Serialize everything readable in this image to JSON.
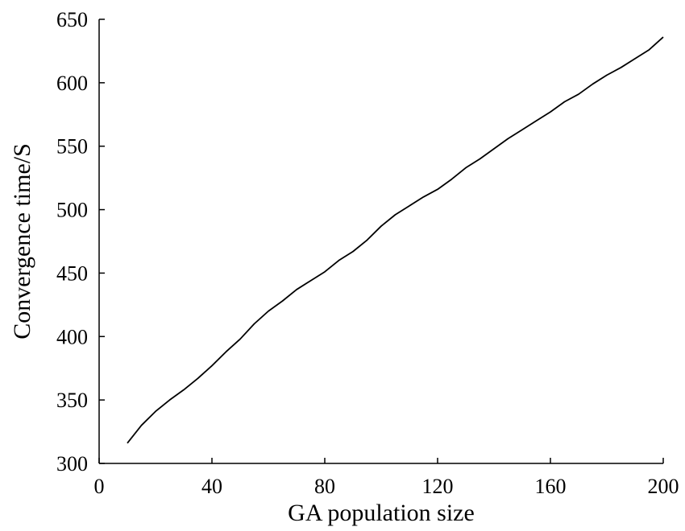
{
  "chart_data": {
    "type": "line",
    "title": "",
    "xlabel": "GA population size",
    "ylabel": "Convergence time/S",
    "xlim": [
      0,
      200
    ],
    "ylim": [
      300,
      650
    ],
    "x_ticks": [
      0,
      40,
      80,
      120,
      160,
      200
    ],
    "y_ticks": [
      300,
      350,
      400,
      450,
      500,
      550,
      600,
      650
    ],
    "grid": false,
    "legend": "none",
    "line_color": "#000000",
    "series": [
      {
        "x": [
          10,
          15,
          20,
          25,
          30,
          35,
          40,
          45,
          50,
          55,
          60,
          65,
          70,
          75,
          80,
          85,
          90,
          95,
          100,
          105,
          110,
          115,
          120,
          125,
          130,
          135,
          140,
          145,
          150,
          155,
          160,
          165,
          170,
          175,
          180,
          185,
          190,
          195,
          200
        ],
        "values": [
          316,
          330,
          341,
          350,
          358,
          367,
          377,
          388,
          398,
          410,
          420,
          428,
          437,
          444,
          451,
          460,
          467,
          476,
          487,
          496,
          503,
          510,
          516,
          524,
          533,
          540,
          548,
          556,
          563,
          570,
          577,
          585,
          591,
          599,
          606,
          612,
          619,
          626,
          636
        ]
      }
    ]
  }
}
